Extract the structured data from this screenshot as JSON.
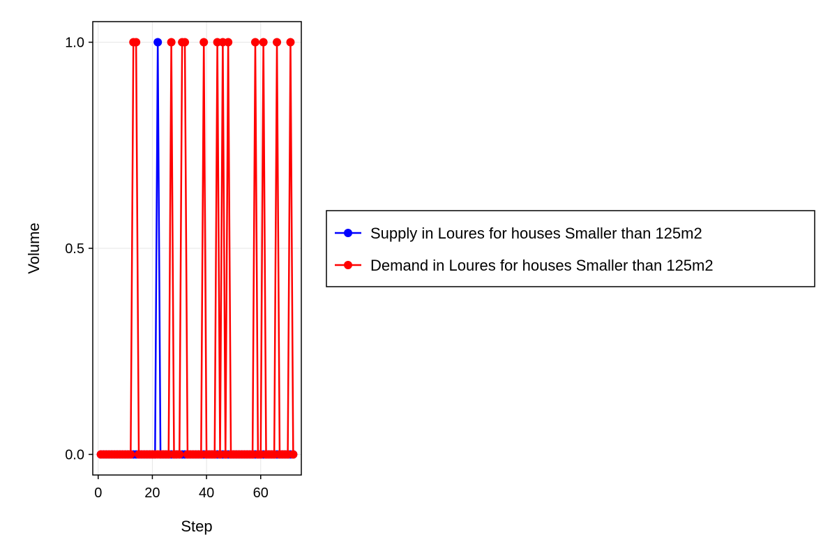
{
  "chart_data": {
    "type": "line",
    "title": "",
    "xlabel": "Step",
    "ylabel": "Volume",
    "xlim": [
      -2,
      75
    ],
    "ylim": [
      -0.05,
      1.05
    ],
    "xticks": [
      0,
      20,
      40,
      60
    ],
    "yticks": [
      0.0,
      0.5,
      1.0
    ],
    "xtick_labels": [
      "0",
      "20",
      "40",
      "60"
    ],
    "ytick_labels": [
      "0.0",
      "0.5",
      "1.0"
    ],
    "grid": true,
    "legend_position": "outside-right",
    "series": [
      {
        "name": "Supply in Loures for houses Smaller than 125m2",
        "color": "#0000ff",
        "x": [
          1,
          2,
          3,
          4,
          5,
          6,
          7,
          8,
          9,
          10,
          11,
          12,
          13,
          14,
          15,
          16,
          17,
          18,
          19,
          20,
          21,
          22,
          23,
          24,
          25,
          26,
          27,
          28,
          29,
          30,
          31,
          32,
          33,
          34,
          35,
          36,
          37,
          38,
          39,
          40,
          41,
          42,
          43,
          44,
          45,
          46,
          47,
          48,
          49,
          50,
          51,
          52,
          53,
          54,
          55,
          56,
          57,
          58,
          59,
          60,
          61,
          62,
          63,
          64,
          65,
          66,
          67,
          68,
          69,
          70,
          71,
          72
        ],
        "y": [
          0,
          0,
          0,
          0,
          0,
          0,
          0,
          0,
          0,
          0,
          0,
          0,
          0,
          0,
          0,
          0,
          0,
          0,
          0,
          0,
          0,
          1,
          0,
          0,
          0,
          0,
          0,
          0,
          0,
          0,
          0,
          0,
          0,
          0,
          0,
          0,
          0,
          0,
          0,
          0,
          0,
          0,
          0,
          0,
          0,
          0,
          0,
          0,
          0,
          0,
          0,
          0,
          0,
          0,
          0,
          0,
          0,
          0,
          0,
          0,
          0,
          0,
          0,
          0,
          0,
          0,
          0,
          0,
          0,
          0,
          0,
          0
        ]
      },
      {
        "name": "Demand in Loures for houses Smaller than 125m2",
        "color": "#ff0000",
        "x": [
          1,
          2,
          3,
          4,
          5,
          6,
          7,
          8,
          9,
          10,
          11,
          12,
          13,
          14,
          15,
          16,
          17,
          18,
          19,
          20,
          21,
          22,
          23,
          24,
          25,
          26,
          27,
          28,
          29,
          30,
          31,
          32,
          33,
          34,
          35,
          36,
          37,
          38,
          39,
          40,
          41,
          42,
          43,
          44,
          45,
          46,
          47,
          48,
          49,
          50,
          51,
          52,
          53,
          54,
          55,
          56,
          57,
          58,
          59,
          60,
          61,
          62,
          63,
          64,
          65,
          66,
          67,
          68,
          69,
          70,
          71,
          72
        ],
        "y": [
          0,
          0,
          0,
          0,
          0,
          0,
          0,
          0,
          0,
          0,
          0,
          0,
          1,
          1,
          0,
          0,
          0,
          0,
          0,
          0,
          0,
          0,
          0,
          0,
          0,
          0,
          1,
          0,
          0,
          0,
          1,
          1,
          0,
          0,
          0,
          0,
          0,
          0,
          1,
          0,
          0,
          0,
          0,
          1,
          0,
          1,
          0,
          1,
          0,
          0,
          0,
          0,
          0,
          0,
          0,
          0,
          0,
          1,
          0,
          0,
          1,
          0,
          0,
          0,
          0,
          1,
          0,
          0,
          0,
          0,
          1,
          0
        ]
      }
    ]
  }
}
